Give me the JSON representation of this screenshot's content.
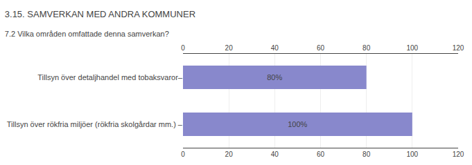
{
  "chart_data": {
    "type": "bar",
    "orientation": "horizontal",
    "title": "3.15. SAMVERKAN MED ANDRA KOMMUNER",
    "subtitle": "7.2 Vilka områden omfattade denna samverkan?",
    "categories": [
      "Tillsyn över detaljhandel med tobaksvaror–",
      "Tillsyn över rökfria miljöer (rökfria skolgårdar mm.) –"
    ],
    "values": [
      80,
      100
    ],
    "value_labels": [
      "80%",
      "100%"
    ],
    "data_labels": true,
    "color": "#8888CC",
    "xlim": [
      0,
      120
    ],
    "xticks": [
      0,
      20,
      40,
      60,
      80,
      100,
      120
    ],
    "grid": true
  }
}
